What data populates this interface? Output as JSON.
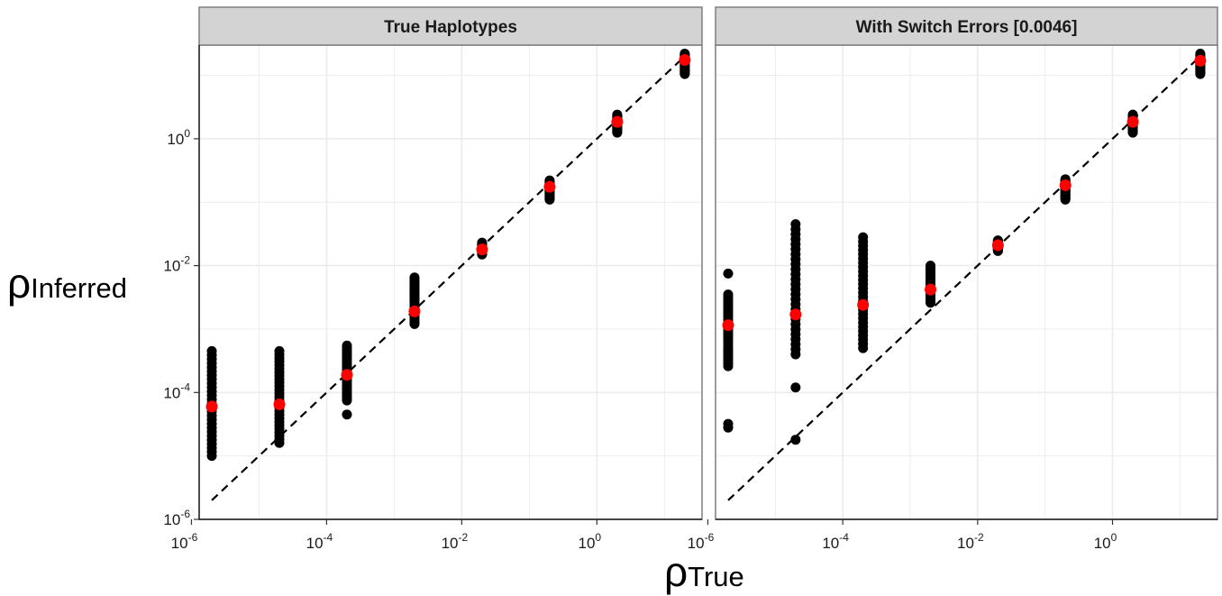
{
  "chart_data": {
    "type": "scatter",
    "scale": "log10",
    "xlabel": {
      "symbol": "ρ",
      "subscript": "True"
    },
    "ylabel": {
      "symbol": "ρ",
      "subscript": "Inferred"
    },
    "xlim": [
      1.3e-06,
      36.0
    ],
    "ylim": [
      1e-06,
      30.0
    ],
    "x_ticks": [
      {
        "base": "10",
        "exp": "-6",
        "value": 1e-06
      },
      {
        "base": "10",
        "exp": "-4",
        "value": 0.0001
      },
      {
        "base": "10",
        "exp": "-2",
        "value": 0.01
      },
      {
        "base": "10",
        "exp": "0",
        "value": 1
      }
    ],
    "y_ticks": [
      {
        "base": "10",
        "exp": "-6",
        "value": 1e-06
      },
      {
        "base": "10",
        "exp": "-4",
        "value": 0.0001
      },
      {
        "base": "10",
        "exp": "-2",
        "value": 0.01
      },
      {
        "base": "10",
        "exp": "0",
        "value": 1
      }
    ],
    "grid": true,
    "reference_line": "y = x",
    "colors": {
      "points": "#000000",
      "means": "#ff0000",
      "strip": "#d3d3d3",
      "grid": "#ececec",
      "panel_border": "#7f7f7f",
      "reference_line": "#000000"
    },
    "panels": [
      {
        "title": "True Haplotypes",
        "groups": [
          {
            "x": 2e-06,
            "mean": 6e-05,
            "ymin": 1e-05,
            "ymax": 0.00045,
            "extra": []
          },
          {
            "x": 2e-05,
            "mean": 6.5e-05,
            "ymin": 1.6e-05,
            "ymax": 0.00045,
            "extra": []
          },
          {
            "x": 0.0002,
            "mean": 0.00019,
            "ymin": 7.5e-05,
            "ymax": 0.00055,
            "extra": [
              4.5e-05
            ]
          },
          {
            "x": 0.002,
            "mean": 0.0019,
            "ymin": 0.0012,
            "ymax": 0.0065,
            "extra": []
          },
          {
            "x": 0.02,
            "mean": 0.018,
            "ymin": 0.015,
            "ymax": 0.023,
            "extra": []
          },
          {
            "x": 0.2,
            "mean": 0.175,
            "ymin": 0.11,
            "ymax": 0.22,
            "extra": []
          },
          {
            "x": 2.0,
            "mean": 1.85,
            "ymin": 1.25,
            "ymax": 2.4,
            "extra": []
          },
          {
            "x": 20.0,
            "mean": 17.5,
            "ymin": 10.5,
            "ymax": 22.0,
            "extra": []
          }
        ]
      },
      {
        "title": "With Switch Errors [0.0046]",
        "groups": [
          {
            "x": 2e-06,
            "mean": 0.00115,
            "ymin": 0.00026,
            "ymax": 0.0035,
            "extra": [
              0.0075,
              3.2e-05,
              2.8e-05
            ]
          },
          {
            "x": 2e-05,
            "mean": 0.0017,
            "ymin": 0.0004,
            "ymax": 0.045,
            "extra": [
              0.00012,
              1.8e-05
            ]
          },
          {
            "x": 0.0002,
            "mean": 0.0024,
            "ymin": 0.0005,
            "ymax": 0.028,
            "extra": []
          },
          {
            "x": 0.002,
            "mean": 0.0042,
            "ymin": 0.0026,
            "ymax": 0.01,
            "extra": []
          },
          {
            "x": 0.02,
            "mean": 0.021,
            "ymin": 0.017,
            "ymax": 0.025,
            "extra": []
          },
          {
            "x": 0.2,
            "mean": 0.185,
            "ymin": 0.11,
            "ymax": 0.23,
            "extra": []
          },
          {
            "x": 2.0,
            "mean": 1.85,
            "ymin": 1.25,
            "ymax": 2.4,
            "extra": []
          },
          {
            "x": 20.0,
            "mean": 17.0,
            "ymin": 10.5,
            "ymax": 22.0,
            "extra": []
          }
        ]
      }
    ]
  }
}
